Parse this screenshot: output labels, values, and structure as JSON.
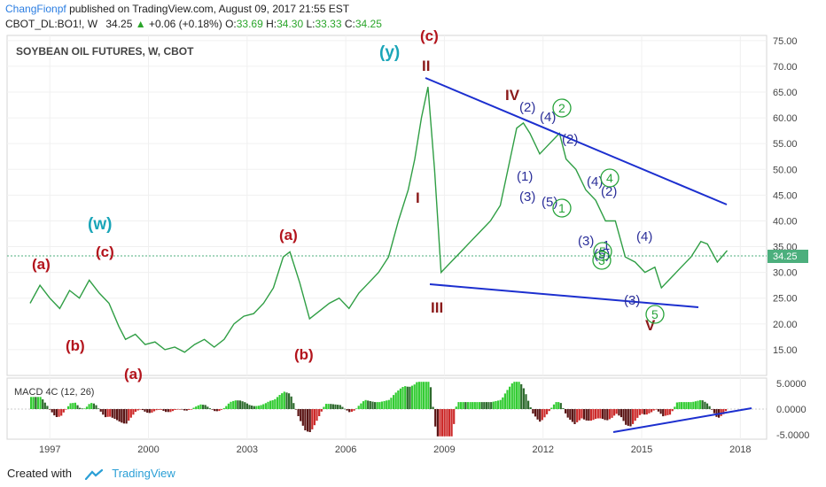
{
  "header": {
    "author": "ChangFionpf",
    "published": "published on TradingView.com, August 09, 2017 21:55 EST",
    "symbol": "CBOT_DL:BO1!, W",
    "last": "34.25",
    "change": "+0.06 (+0.18%)",
    "ohlc": {
      "o_label": "O:",
      "o": "33.69",
      "h_label": "H:",
      "h": "34.30",
      "l_label": "L:",
      "l": "33.33",
      "c_label": "C:",
      "c": "34.25"
    }
  },
  "footer": {
    "created_with": "Created with",
    "brand": "TradingView"
  },
  "colors": {
    "price": "#2f9e44",
    "down": "#d43a3a",
    "trend": "#1c2fcf",
    "wave_red": "#b3141c",
    "wave_cyan": "#1aa5b8",
    "wave_blue": "#2b2f99",
    "wave_green": "#27a33a",
    "last_bg": "#4caf7d"
  },
  "chart_data": [
    {
      "type": "line",
      "title": "SOYBEAN OIL FUTURES, W, CBOT",
      "x_ticks": [
        "1997",
        "2000",
        "2003",
        "2006",
        "2009",
        "2012",
        "2015",
        "2018"
      ],
      "y_ticks": [
        "75.00",
        "70.00",
        "65.00",
        "60.00",
        "55.00",
        "50.00",
        "45.00",
        "40.00",
        "35.00",
        "30.00",
        "25.00",
        "20.00",
        "15.00"
      ],
      "ylim": [
        10,
        76
      ],
      "xlim": [
        1995.7,
        2018.8
      ],
      "last_value": "34.25",
      "series": [
        {
          "x": [
            1996.4,
            1996.7,
            1997.0,
            1997.3,
            1997.6,
            1997.9,
            1998.2,
            1998.5,
            1998.8,
            1999.1,
            1999.3,
            1999.6,
            1999.9,
            2000.2,
            2000.5,
            2000.8,
            2001.1,
            2001.4,
            2001.7,
            2002.0,
            2002.3,
            2002.6,
            2002.9,
            2003.2,
            2003.5,
            2003.8,
            2004.1,
            2004.3,
            2004.6,
            2004.9,
            2005.2,
            2005.5,
            2005.8,
            2006.1,
            2006.4,
            2006.7,
            2007.0,
            2007.3,
            2007.6,
            2007.9,
            2008.1,
            2008.3,
            2008.5,
            2008.7,
            2008.9,
            2009.2,
            2009.5,
            2009.8,
            2010.1,
            2010.4,
            2010.7,
            2011.0,
            2011.2,
            2011.4,
            2011.6,
            2011.9,
            2012.2,
            2012.5,
            2012.7,
            2013.0,
            2013.3,
            2013.6,
            2013.9,
            2014.2,
            2014.5,
            2014.8,
            2015.1,
            2015.4,
            2015.6,
            2015.9,
            2016.2,
            2016.5,
            2016.8,
            2017.0,
            2017.3,
            2017.6
          ],
          "y": [
            24,
            27.5,
            25,
            23,
            26.5,
            25,
            28.5,
            26,
            24,
            19.5,
            17,
            18,
            16,
            16.5,
            15,
            15.5,
            14.5,
            16,
            17,
            15.5,
            17,
            20,
            21.5,
            22,
            24,
            27,
            33,
            34,
            28,
            21,
            22.5,
            24,
            25,
            23,
            26,
            28,
            30,
            33,
            40,
            46,
            52,
            60,
            66,
            50,
            30,
            32,
            34,
            36,
            38,
            40,
            43,
            52,
            58,
            59,
            57,
            53,
            55,
            57,
            52,
            50,
            46,
            44,
            40,
            40,
            33,
            32,
            30,
            31,
            27,
            29,
            31,
            33,
            36,
            35.5,
            32,
            34.25
          ]
        }
      ],
      "wave_labels_red": [
        "(a)",
        "(c)",
        "(b)",
        "(a)",
        "(a)",
        "(b)",
        "I",
        "II",
        "III",
        "IV",
        "V",
        "(c)"
      ],
      "wave_labels_cyan": [
        "(w)",
        "(y)"
      ],
      "wave_labels_blue": [
        "(2)",
        "(4)",
        "(2)",
        "(1)",
        "(3)",
        "(5)",
        "(4)",
        "(2)",
        "(3)",
        "1",
        "(4)",
        "(3)",
        "(5)"
      ],
      "wave_labels_green": [
        "2",
        "4",
        "1",
        "5",
        "3",
        "5"
      ]
    },
    {
      "type": "bar",
      "title": "MACD 4C (12, 26)",
      "y_ticks": [
        "5.0000",
        "0.0000",
        "-5.0000"
      ],
      "ylim": [
        -5.5,
        5.5
      ]
    }
  ]
}
